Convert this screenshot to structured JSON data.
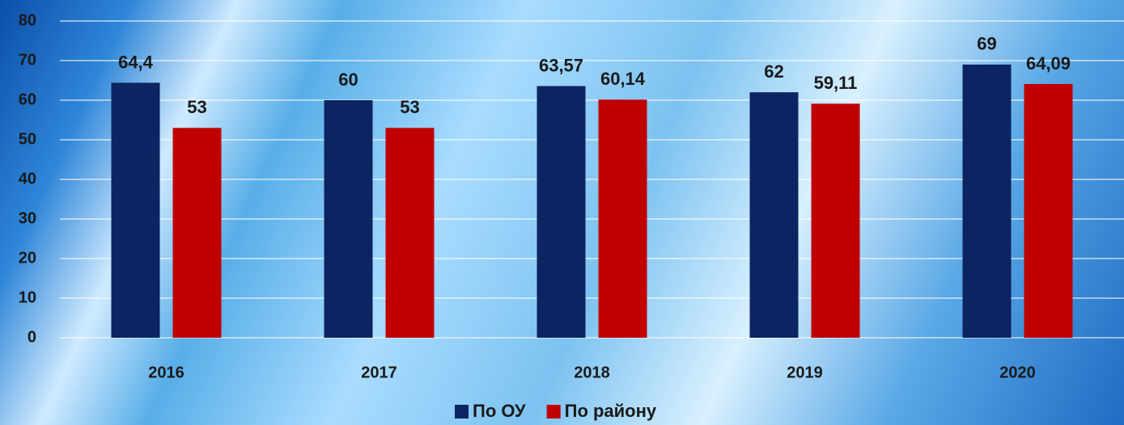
{
  "chart_data": {
    "type": "bar",
    "categories": [
      "2016",
      "2017",
      "2018",
      "2019",
      "2020"
    ],
    "series": [
      {
        "name": "По ОУ",
        "color": "#0c2461",
        "values": [
          64.4,
          60,
          63.57,
          62,
          69
        ],
        "value_labels": [
          "64,4",
          "60",
          "63,57",
          "62",
          "69"
        ]
      },
      {
        "name": "По району",
        "color": "#c00000",
        "values": [
          53,
          53,
          60.14,
          59.11,
          64.09
        ],
        "value_labels": [
          "53",
          "53",
          "60,14",
          "59,11",
          "64,09"
        ]
      }
    ],
    "ylim": [
      0,
      80
    ],
    "yticks": [
      0,
      10,
      20,
      30,
      40,
      50,
      60,
      70,
      80
    ],
    "grid": true,
    "legend": "bottom"
  }
}
